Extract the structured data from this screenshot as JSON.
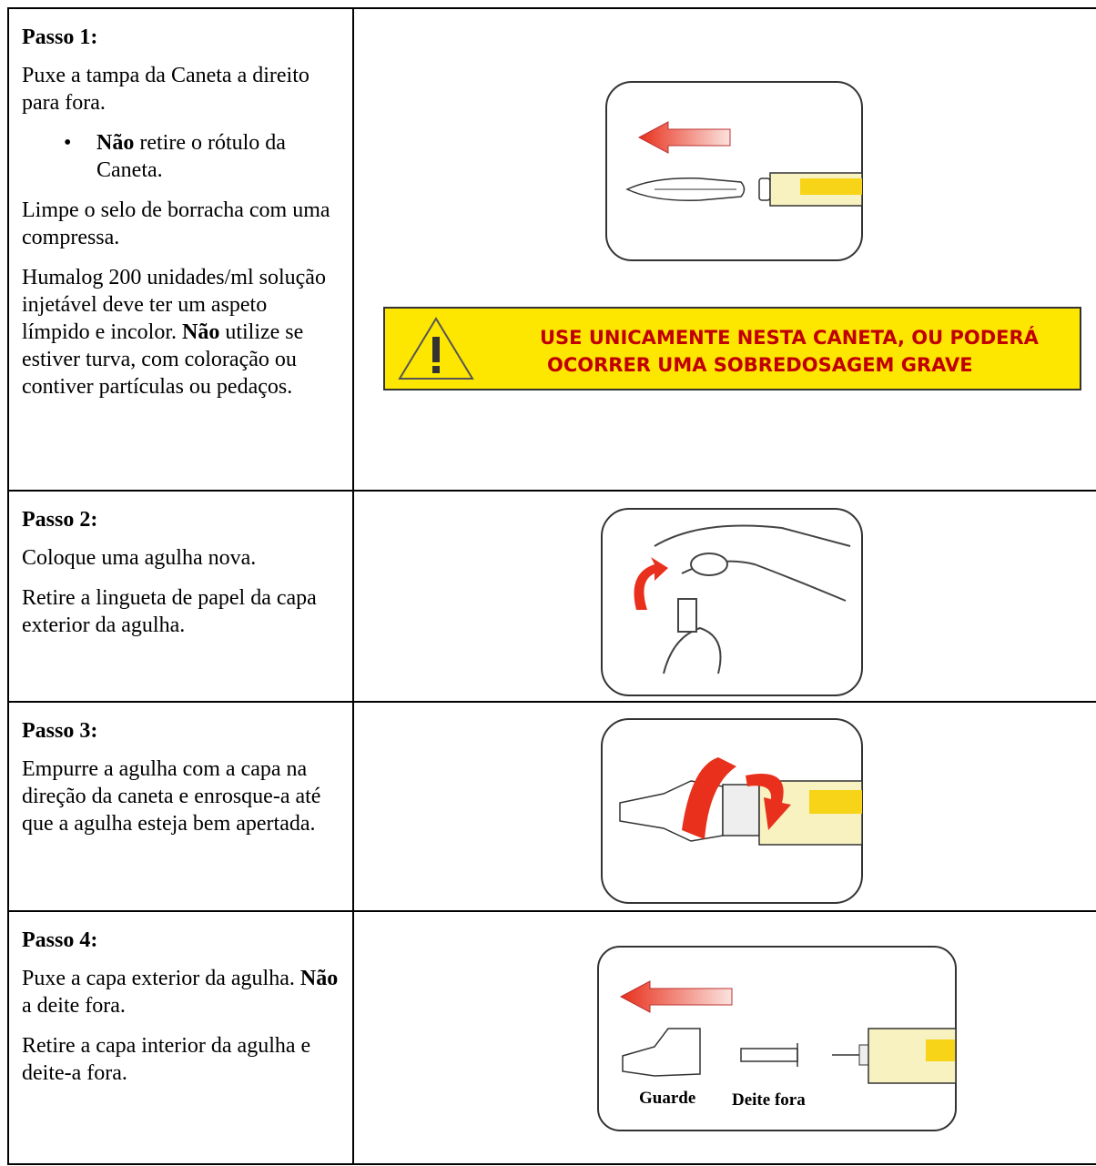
{
  "steps": [
    {
      "title": "Passo 1:",
      "paragraphs": [
        {
          "runs": [
            {
              "text": "Puxe a tampa da Caneta a direito para fora."
            }
          ]
        },
        {
          "bullet": true,
          "runs": [
            {
              "text": "Não",
              "bold": true
            },
            {
              "text": " retire o rótulo da Caneta."
            }
          ]
        },
        {
          "runs": [
            {
              "text": "Limpe o selo de borracha com uma compressa."
            }
          ]
        },
        {
          "runs": [
            {
              "text": "Humalog 200 unidades/ml solução injetável deve ter um aspeto límpido e incolor. "
            },
            {
              "text": "Não",
              "bold": true
            },
            {
              "text": " utilize se estiver turva, com coloração ou contiver partículas ou pedaços."
            }
          ]
        }
      ]
    },
    {
      "title": "Passo 2:",
      "paragraphs": [
        {
          "runs": [
            {
              "text": "Coloque uma agulha nova."
            }
          ]
        },
        {
          "runs": [
            {
              "text": "Retire a lingueta de papel da capa exterior da agulha."
            }
          ]
        }
      ]
    },
    {
      "title": "Passo 3:",
      "paragraphs": [
        {
          "runs": [
            {
              "text": "Empurre a agulha com a capa na direção da caneta e enrosque-a até que a agulha esteja bem apertada."
            }
          ]
        }
      ]
    },
    {
      "title": "Passo 4:",
      "paragraphs": [
        {
          "runs": [
            {
              "text": "Puxe a capa exterior da agulha. "
            },
            {
              "text": "Não",
              "bold": true
            },
            {
              "text": " a deite fora."
            }
          ]
        },
        {
          "runs": [
            {
              "text": "Retire a capa interior da agulha e deite-a fora."
            }
          ]
        }
      ]
    }
  ],
  "warning": {
    "lines": [
      "USE UNICAMENTE NESTA CANETA, OU PODERÁ",
      "OCORRER UMA SOBREDOSAGEM GRAVE"
    ]
  },
  "step4_labels": [
    "Guarde",
    "Deite fora"
  ]
}
